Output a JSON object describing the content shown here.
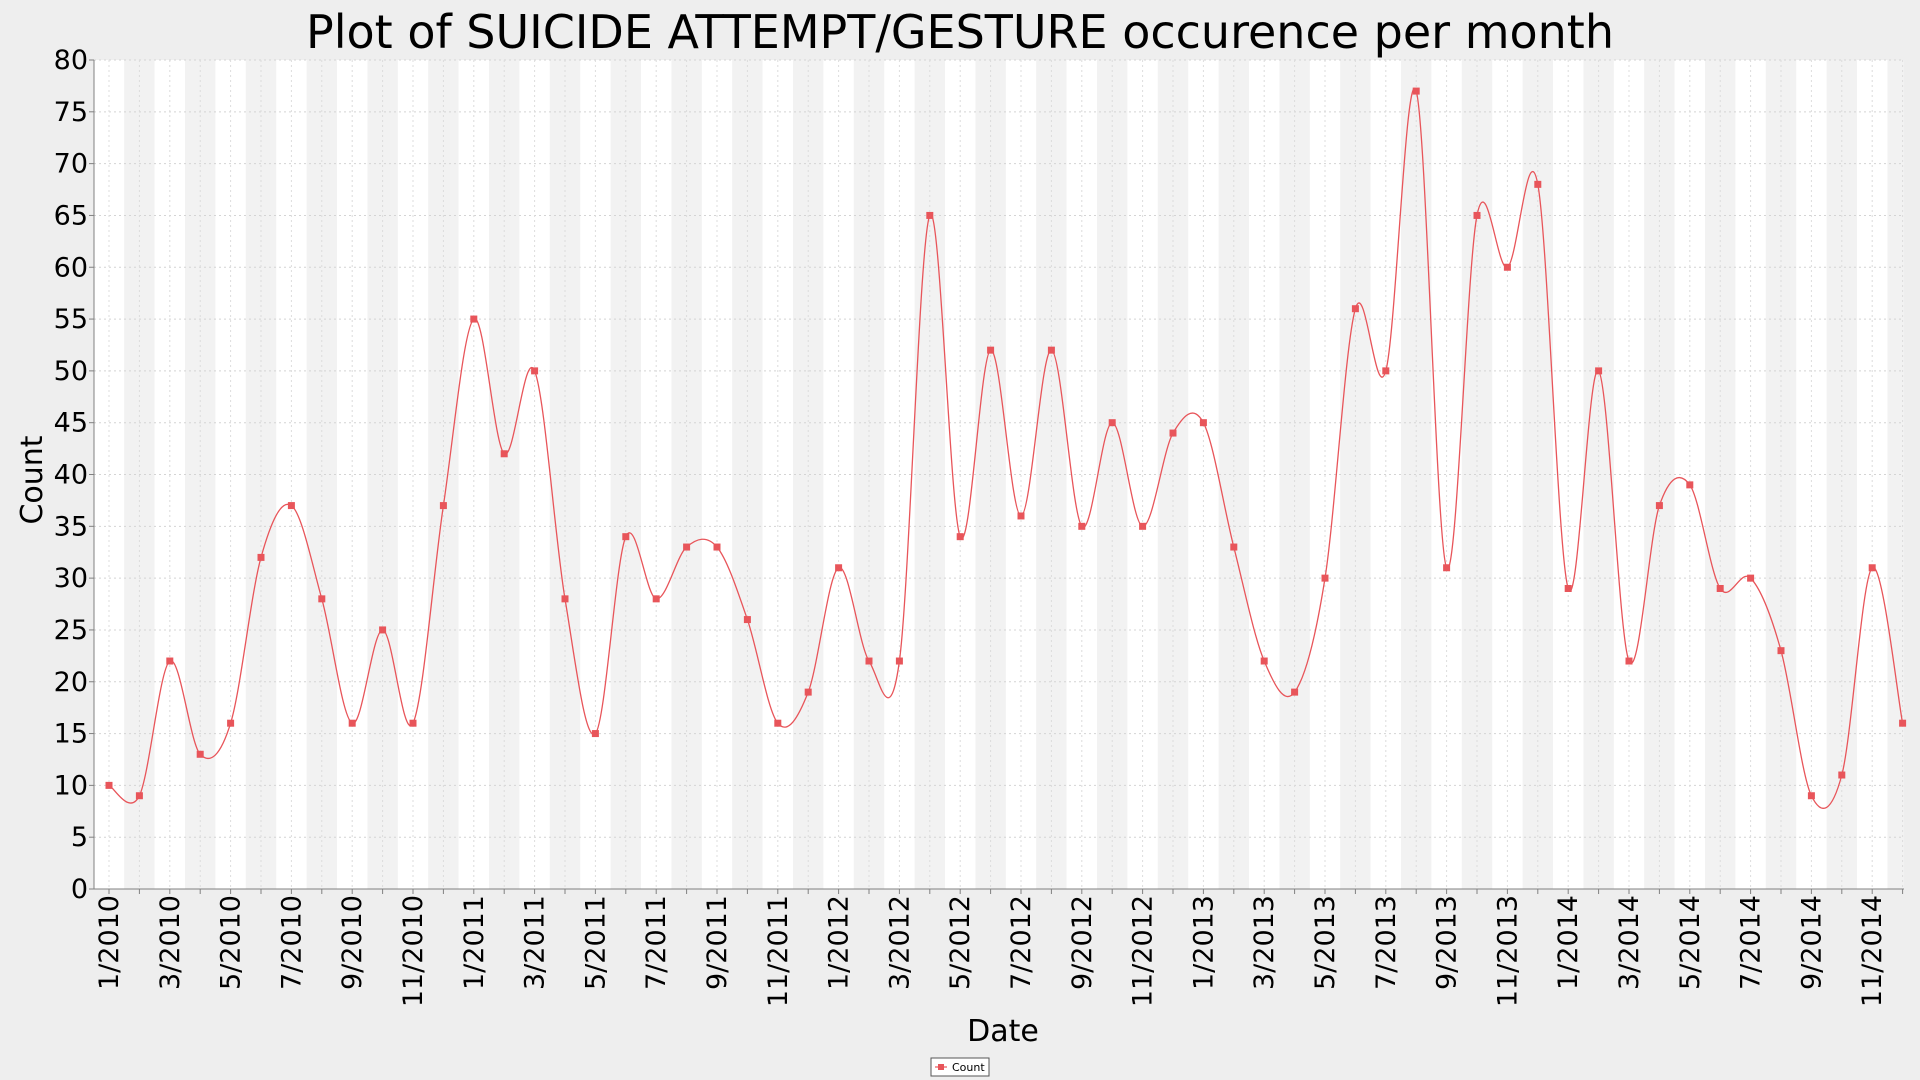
{
  "chart_data": {
    "type": "line",
    "title": "Plot of SUICIDE ATTEMPT/GESTURE occurence per month",
    "xlabel": "Date",
    "ylabel": "Count",
    "ylim": [
      0,
      80
    ],
    "yticks": [
      0,
      5,
      10,
      15,
      20,
      25,
      30,
      35,
      40,
      45,
      50,
      55,
      60,
      65,
      70,
      75,
      80
    ],
    "x_tick_labels": [
      "1/2010",
      "3/2010",
      "5/2010",
      "7/2010",
      "9/2010",
      "11/2010",
      "1/2011",
      "3/2011",
      "5/2011",
      "7/2011",
      "9/2011",
      "11/2011",
      "1/2012",
      "3/2012",
      "5/2012",
      "7/2012",
      "9/2012",
      "11/2012",
      "1/2013",
      "3/2013",
      "5/2013",
      "7/2013",
      "9/2013",
      "11/2013",
      "1/2014",
      "3/2014",
      "5/2014",
      "7/2014",
      "9/2014",
      "11/2014"
    ],
    "grid": true,
    "legend_position": "bottom-center",
    "series": [
      {
        "name": "Count",
        "color": "#e8555a",
        "x": [
          "1/2010",
          "2/2010",
          "3/2010",
          "4/2010",
          "5/2010",
          "6/2010",
          "7/2010",
          "8/2010",
          "9/2010",
          "10/2010",
          "11/2010",
          "12/2010",
          "1/2011",
          "2/2011",
          "3/2011",
          "4/2011",
          "5/2011",
          "6/2011",
          "7/2011",
          "8/2011",
          "9/2011",
          "10/2011",
          "11/2011",
          "12/2011",
          "1/2012",
          "2/2012",
          "3/2012",
          "4/2012",
          "5/2012",
          "6/2012",
          "7/2012",
          "8/2012",
          "9/2012",
          "10/2012",
          "11/2012",
          "12/2012",
          "1/2013",
          "2/2013",
          "3/2013",
          "4/2013",
          "5/2013",
          "6/2013",
          "7/2013",
          "8/2013",
          "9/2013",
          "10/2013",
          "11/2013",
          "12/2013",
          "1/2014",
          "2/2014",
          "3/2014",
          "4/2014",
          "5/2014",
          "6/2014",
          "7/2014",
          "8/2014",
          "9/2014",
          "10/2014",
          "11/2014",
          "12/2014"
        ],
        "values": [
          10,
          9,
          22,
          13,
          16,
          32,
          37,
          28,
          16,
          25,
          16,
          37,
          55,
          42,
          50,
          28,
          15,
          34,
          28,
          33,
          33,
          26,
          16,
          19,
          31,
          22,
          22,
          65,
          34,
          52,
          36,
          52,
          35,
          45,
          35,
          44,
          45,
          33,
          22,
          19,
          30,
          56,
          50,
          77,
          31,
          65,
          60,
          68,
          29,
          50,
          22,
          37,
          39,
          29,
          30,
          23,
          9,
          11,
          31,
          16
        ]
      }
    ]
  }
}
